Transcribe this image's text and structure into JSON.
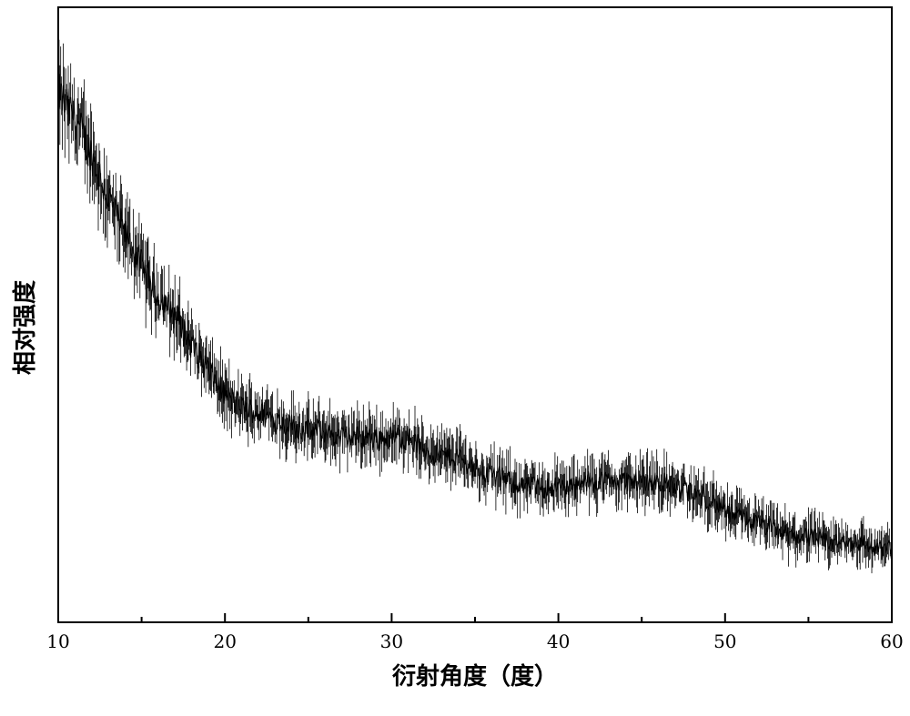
{
  "chart_data": {
    "type": "line",
    "xlabel": "衍射角度（度）",
    "ylabel": "相对强度",
    "title": "",
    "xlim": [
      10,
      60
    ],
    "ylim": [
      0,
      1
    ],
    "x_ticks": [
      10,
      20,
      30,
      40,
      50,
      60
    ],
    "x_minor_step": 5,
    "y_ticks_shown": false,
    "grid": false,
    "legend": "none",
    "line_color": "#000000",
    "series": [
      {
        "x": [
          10,
          11,
          12,
          13,
          14,
          15,
          16,
          17,
          18,
          19,
          20,
          21,
          22,
          23,
          24,
          25,
          26,
          27,
          28,
          29,
          30,
          31,
          32,
          33,
          34,
          35,
          36,
          37,
          38,
          39,
          40,
          41,
          42,
          43,
          44,
          45,
          46,
          47,
          48,
          49,
          50,
          51,
          52,
          53,
          54,
          55,
          56,
          57,
          58,
          59,
          60
        ],
        "values": [
          0.86,
          0.82,
          0.76,
          0.69,
          0.63,
          0.58,
          0.53,
          0.5,
          0.45,
          0.41,
          0.37,
          0.35,
          0.34,
          0.33,
          0.32,
          0.31,
          0.31,
          0.3,
          0.3,
          0.3,
          0.3,
          0.3,
          0.28,
          0.27,
          0.27,
          0.25,
          0.24,
          0.23,
          0.22,
          0.22,
          0.22,
          0.22,
          0.23,
          0.23,
          0.23,
          0.23,
          0.23,
          0.22,
          0.21,
          0.2,
          0.18,
          0.17,
          0.16,
          0.15,
          0.14,
          0.14,
          0.13,
          0.13,
          0.13,
          0.12,
          0.12
        ]
      }
    ]
  }
}
